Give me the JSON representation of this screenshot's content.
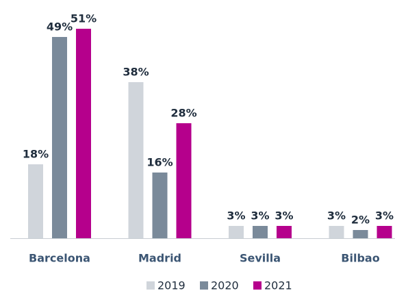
{
  "chart_data": {
    "type": "bar",
    "categories": [
      "Barcelona",
      "Madrid",
      "Sevilla",
      "Bilbao"
    ],
    "series": [
      {
        "name": "2019",
        "color": "#d0d5db",
        "values": [
          18,
          38,
          3,
          3
        ],
        "value_labels": [
          "18%",
          "38%",
          "3%",
          "3%"
        ]
      },
      {
        "name": "2020",
        "color": "#7a8a9a",
        "values": [
          49,
          16,
          3,
          2
        ],
        "value_labels": [
          "49%",
          "16%",
          "3%",
          "2%"
        ]
      },
      {
        "name": "2021",
        "color": "#b5008c",
        "values": [
          51,
          28,
          3,
          3
        ],
        "value_labels": [
          "51%",
          "28%",
          "3%",
          "3%"
        ]
      }
    ]
  }
}
